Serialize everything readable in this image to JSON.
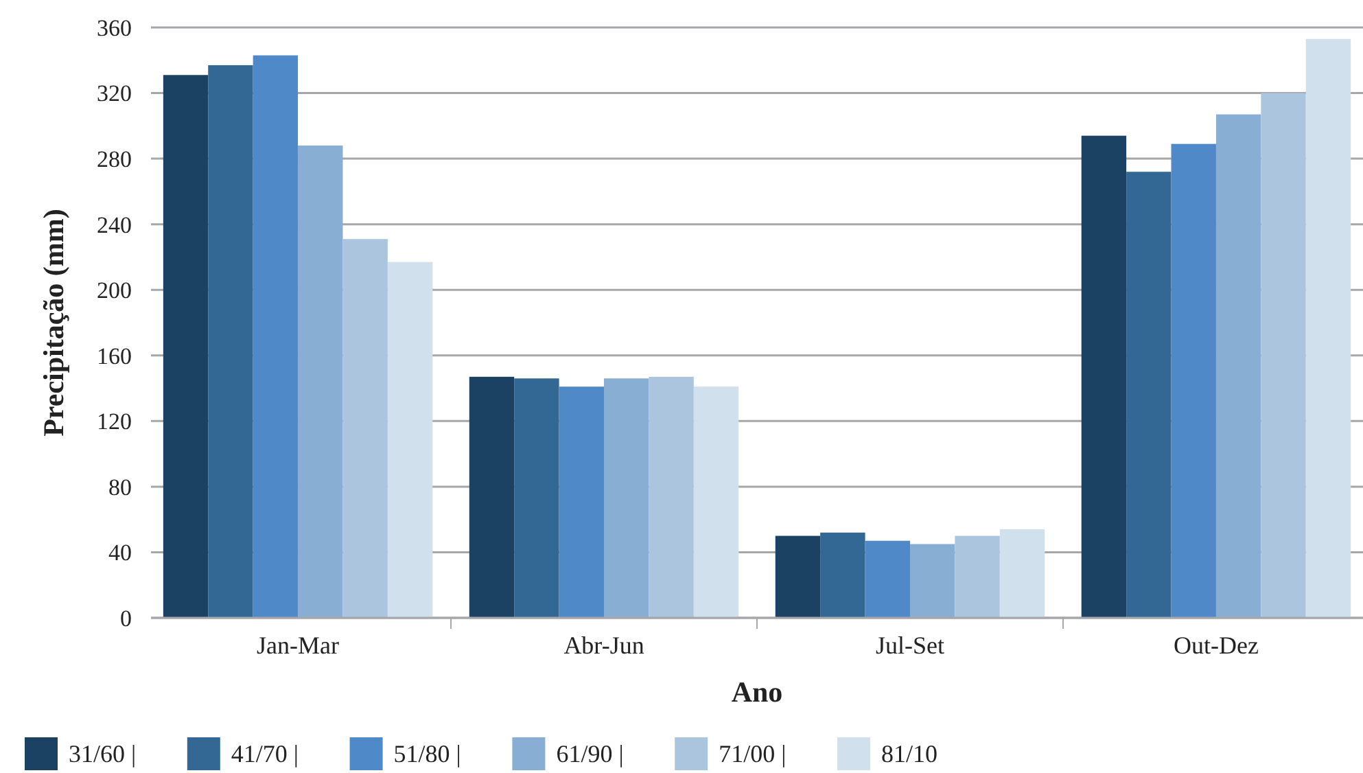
{
  "chart_data": {
    "type": "bar",
    "xlabel": "Ano",
    "ylabel": "Precipitação (mm)",
    "categories": [
      "Jan-Mar",
      "Abr-Jun",
      "Jul-Set",
      "Out-Dez"
    ],
    "series": [
      {
        "name": "31/60 |",
        "color": "#1c4263",
        "values": [
          331,
          147,
          50,
          294
        ]
      },
      {
        "name": "41/70 |",
        "color": "#336794",
        "values": [
          337,
          146,
          52,
          272
        ]
      },
      {
        "name": "51/80 |",
        "color": "#4f89c8",
        "values": [
          343,
          141,
          47,
          289
        ]
      },
      {
        "name": "61/90 |",
        "color": "#89aed3",
        "values": [
          288,
          146,
          45,
          307
        ]
      },
      {
        "name": "71/00 |",
        "color": "#abc5df",
        "values": [
          231,
          147,
          50,
          320
        ]
      },
      {
        "name": "81/10",
        "color": "#d0e0ed",
        "values": [
          217,
          141,
          54,
          353
        ]
      }
    ],
    "ylim": [
      0,
      360
    ],
    "yticks": [
      0,
      40,
      80,
      120,
      160,
      200,
      240,
      280,
      320,
      360
    ],
    "grid": "y",
    "legend": "bottom"
  }
}
